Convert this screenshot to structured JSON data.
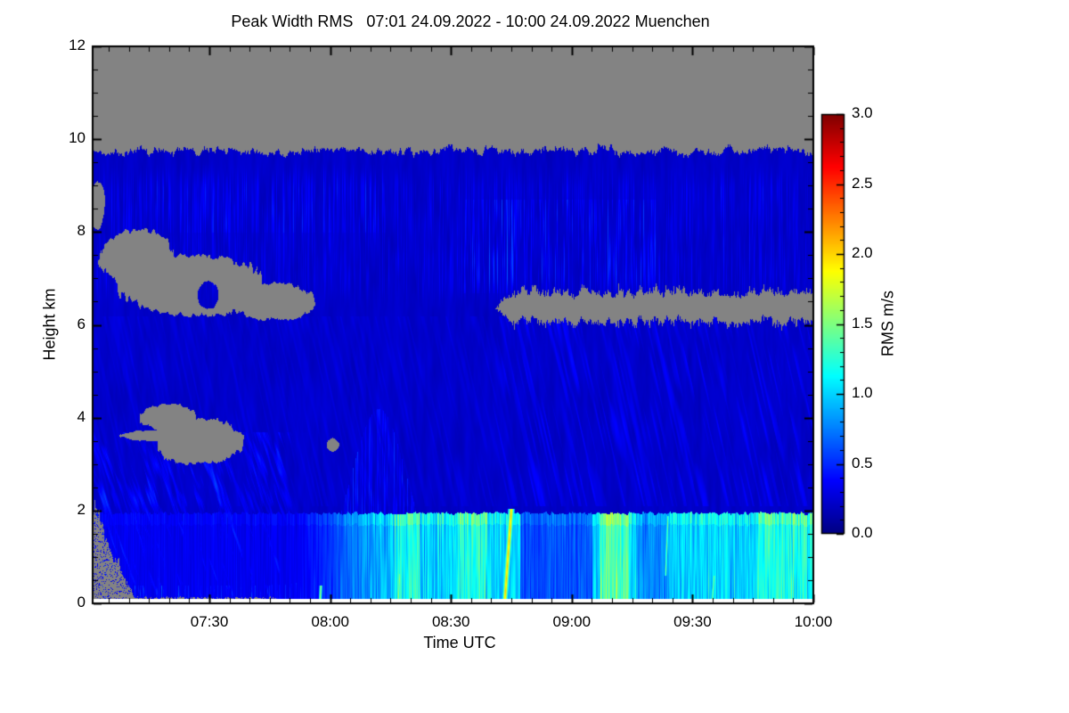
{
  "page": {
    "background": "#ffffff"
  },
  "chart_data": {
    "type": "heatmap",
    "title": "Peak Width RMS   07:01 24.09.2022 - 10:00 24.09.2022 Muenchen",
    "station": "Muenchen",
    "time_start": "07:01 24.09.2022",
    "time_end": "10:00 24.09.2022",
    "xlabel": "Time UTC",
    "ylabel": "Height km",
    "x_axis": {
      "range_minutes": [
        0,
        179
      ],
      "tick_labels": [
        "07:30",
        "08:00",
        "08:30",
        "09:00",
        "09:30",
        "10:00"
      ],
      "tick_minutes": [
        29,
        59,
        89,
        119,
        149,
        179
      ],
      "minor_step_min": 5
    },
    "y_axis": {
      "range": [
        0,
        12
      ],
      "tick_labels": [
        "0",
        "2",
        "4",
        "6",
        "8",
        "10",
        "12"
      ],
      "tick_values": [
        0,
        2,
        4,
        6,
        8,
        10,
        12
      ],
      "minor_step": 0.5
    },
    "colorbar": {
      "label": "RMS m/s",
      "range": [
        0,
        3
      ],
      "tick_labels": [
        "0.0",
        "0.5",
        "1.0",
        "1.5",
        "2.0",
        "2.5",
        "3.0"
      ],
      "tick_values": [
        0,
        0.5,
        1,
        1.5,
        2,
        2.5,
        3
      ],
      "minor_step": 0.1,
      "colormap": "jet"
    },
    "colors": {
      "no_data": "#838383",
      "frame": "#000000",
      "background": "#ffffff"
    },
    "field": {
      "base_value": 0.15,
      "base_texture_amp": 0.12,
      "cloud_top_km": 9.75,
      "no_data_holes": [
        {
          "id": "hole-upper-left",
          "ellipses": [
            [
              11,
              7.45,
              9,
              0.6
            ],
            [
              25,
              6.85,
              18,
              0.65
            ],
            [
              45,
              6.5,
              10,
              0.4
            ],
            [
              1.0,
              8.6,
              2.0,
              0.5
            ]
          ],
          "island": [
            28.5,
            6.65,
            2.6,
            0.3
          ]
        },
        {
          "id": "hole-low-left",
          "ellipses": [
            [
              19,
              4.0,
              7,
              0.3
            ],
            [
              26,
              3.5,
              11,
              0.5
            ],
            [
              17,
              3.62,
              10,
              0.12
            ],
            [
              59.5,
              3.42,
              1.6,
              0.14
            ]
          ]
        }
      ],
      "no_data_band": {
        "id": "band-6km",
        "t_start": 100,
        "h_center": 6.4,
        "half_h_km": 0.28
      },
      "no_data_wedge": {
        "id": "bottom-left-wedge",
        "top_km": 2.05,
        "end_min": 11,
        "strip_end_min": 46,
        "strip_top_km": 0.13,
        "speckle_frac": 0.16
      },
      "cloud_streaks": {
        "h_range": [
          6.2,
          9.7
        ],
        "amp": 0.3,
        "bright_patches": [
          [
            92,
            142,
            6.7,
            8.7,
            1.9
          ],
          [
            15,
            75,
            8.0,
            9.45,
            1.5
          ]
        ]
      },
      "fall_streaks": {
        "t_range": [
          95,
          179
        ],
        "h_range": [
          2.1,
          6.2
        ],
        "amp": 0.2
      },
      "left_streaks": {
        "t_range": [
          0,
          54
        ],
        "h_range": [
          0,
          3.7
        ],
        "amp": 0.5
      },
      "plume": {
        "t_center": 71,
        "t_sigma": 10,
        "h_max_km": 4.2,
        "amp": 0.5
      },
      "boundary_layer": {
        "top_km": 1.95,
        "ramp_minutes": [
          48,
          78
        ],
        "base_low": 0.3,
        "base_high": 0.92,
        "dark_patches": [
          [
            106,
            124,
            0.62
          ],
          [
            135,
            143,
            0.78
          ]
        ],
        "bright_patches": [
          [
            75,
            81,
            1.22
          ],
          [
            90,
            98,
            1.2
          ],
          [
            126,
            133,
            1.35
          ],
          [
            165,
            179,
            1.18
          ]
        ]
      },
      "bright_streaks": [
        [
          103.9,
          2.05,
          102.3,
          0.1,
          0.9,
          2.05
        ],
        [
          142.8,
          1.9,
          142.2,
          0.6,
          0.45,
          1.5
        ],
        [
          76.2,
          0.65,
          75.8,
          0.05,
          0.5,
          1.6
        ],
        [
          56.6,
          0.4,
          56.4,
          0.05,
          0.45,
          1.7
        ],
        [
          154.3,
          0.6,
          153.8,
          0.1,
          0.5,
          1.55
        ]
      ]
    }
  }
}
